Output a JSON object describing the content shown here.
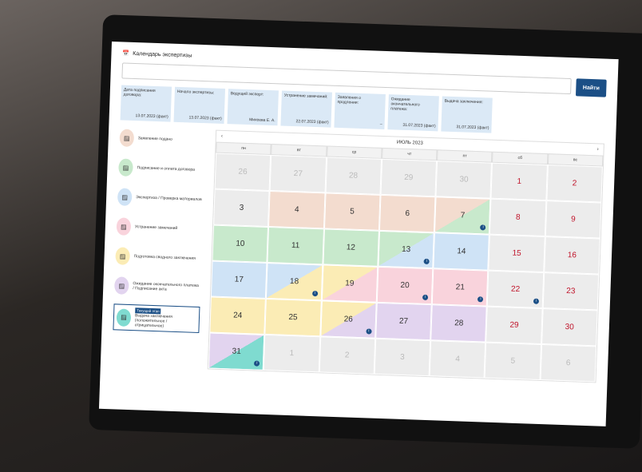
{
  "header": {
    "title": "Календарь экспертизы",
    "search_placeholder": "",
    "search_button": "Найти"
  },
  "info_cards": [
    {
      "label": "Дата подписания договора:",
      "value": "13.07.2023 (факт)"
    },
    {
      "label": "Начало экспертизы:",
      "value": "13.07.2023 (факт)"
    },
    {
      "label": "Ведущий эксперт:",
      "value": "Михеева Е. А."
    },
    {
      "label": "Устранение замечаний:",
      "value": "22.07.2023 (факт)"
    },
    {
      "label": "Заявления о продлении:",
      "value": "–"
    },
    {
      "label": "Ожидание окончательного платежа:",
      "value": "31.07.2023 (факт)"
    },
    {
      "label": "Выдача заключения:",
      "value": "31.07.2023 (факт)"
    }
  ],
  "stages": [
    {
      "label": "Заявление подано",
      "color": "#f3dccf"
    },
    {
      "label": "Подписание и оплата договора",
      "color": "#c8e9cc"
    },
    {
      "label": "Экспертиза / Проверка материалов",
      "color": "#cfe3f6"
    },
    {
      "label": "Устранение замечаний",
      "color": "#f9d3dc"
    },
    {
      "label": "Подготовка сводного заключения",
      "color": "#fbecb5"
    },
    {
      "label": "Ожидание окончательного платежа / Подписание акта",
      "color": "#e2d4ef"
    },
    {
      "label": "Выдача заключения (положительное / отрицательное)",
      "color": "#7fdbd0",
      "current": true,
      "badge": "Текущий этап"
    }
  ],
  "calendar": {
    "month": "ИЮЛЬ 2023",
    "prev": "‹",
    "next": "›",
    "weekdays": [
      "пн",
      "вт",
      "ср",
      "чт",
      "пт",
      "сб",
      "вс"
    ],
    "days": [
      {
        "d": "26",
        "t": "o"
      },
      {
        "d": "27",
        "t": "o"
      },
      {
        "d": "28",
        "t": "o"
      },
      {
        "d": "29",
        "t": "o"
      },
      {
        "d": "30",
        "t": "o"
      },
      {
        "d": "1",
        "t": "w"
      },
      {
        "d": "2",
        "t": "w"
      },
      {
        "d": "3"
      },
      {
        "d": "4",
        "c": [
          0
        ]
      },
      {
        "d": "5",
        "c": [
          0
        ]
      },
      {
        "d": "6",
        "c": [
          0
        ]
      },
      {
        "d": "7",
        "c": [
          0,
          1
        ],
        "i": true
      },
      {
        "d": "8",
        "t": "w"
      },
      {
        "d": "9",
        "t": "w"
      },
      {
        "d": "10",
        "c": [
          1
        ]
      },
      {
        "d": "11",
        "c": [
          1
        ]
      },
      {
        "d": "12",
        "c": [
          1
        ]
      },
      {
        "d": "13",
        "c": [
          1,
          2
        ],
        "i": true
      },
      {
        "d": "14",
        "c": [
          2
        ]
      },
      {
        "d": "15",
        "t": "w"
      },
      {
        "d": "16",
        "t": "w"
      },
      {
        "d": "17",
        "c": [
          2
        ]
      },
      {
        "d": "18",
        "c": [
          2,
          4
        ],
        "i": true
      },
      {
        "d": "19",
        "c": [
          4,
          3
        ]
      },
      {
        "d": "20",
        "c": [
          3
        ],
        "i": true
      },
      {
        "d": "21",
        "c": [
          3
        ],
        "i": true
      },
      {
        "d": "22",
        "t": "w",
        "i": true
      },
      {
        "d": "23",
        "t": "w"
      },
      {
        "d": "24",
        "c": [
          4
        ]
      },
      {
        "d": "25",
        "c": [
          4
        ]
      },
      {
        "d": "26",
        "c": [
          4,
          5
        ],
        "i": true
      },
      {
        "d": "27",
        "c": [
          5
        ]
      },
      {
        "d": "28",
        "c": [
          5
        ]
      },
      {
        "d": "29",
        "t": "w"
      },
      {
        "d": "30",
        "t": "w"
      },
      {
        "d": "31",
        "c": [
          5,
          6
        ],
        "i": true
      },
      {
        "d": "1",
        "t": "o"
      },
      {
        "d": "2",
        "t": "o"
      },
      {
        "d": "3",
        "t": "o"
      },
      {
        "d": "4",
        "t": "o"
      },
      {
        "d": "5",
        "t": "o"
      },
      {
        "d": "6",
        "t": "o"
      }
    ]
  }
}
